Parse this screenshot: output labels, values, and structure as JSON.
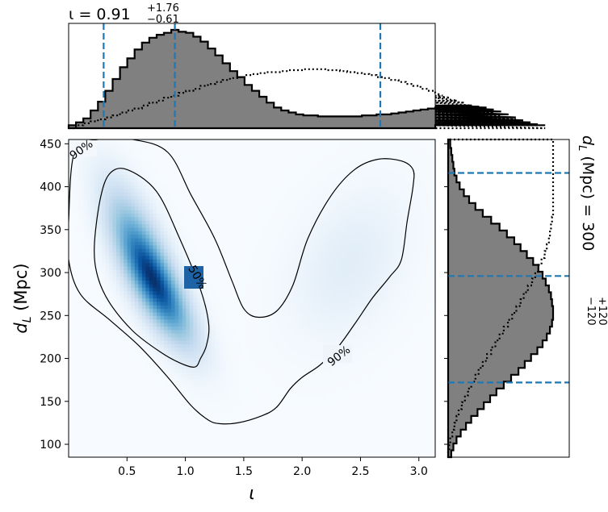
{
  "chart_data": {
    "type": "corner",
    "title": {
      "top_main": "ι = 0.91",
      "top_sup": "+1.76",
      "top_sub": "−0.61",
      "right_main": "d",
      "right_sub_L": "L",
      "right_unit": "(Mpc) = 300",
      "right_sup": "+120",
      "right_sub": "−120"
    },
    "xlabel": "ι",
    "ylabel_main": "d",
    "ylabel_sub": "L",
    "ylabel_unit": "(Mpc)",
    "xlim": [
      0.0,
      3.14
    ],
    "ylim": [
      85,
      455
    ],
    "xticks": [
      0.5,
      1.0,
      1.5,
      2.0,
      2.5,
      3.0
    ],
    "xtick_labels": [
      "0.5",
      "1.0",
      "1.5",
      "2.0",
      "2.5",
      "3.0"
    ],
    "yticks": [
      100,
      150,
      200,
      250,
      300,
      350,
      400,
      450
    ],
    "ytick_labels": [
      "100",
      "150",
      "200",
      "250",
      "300",
      "350",
      "400",
      "450"
    ],
    "contour_labels": [
      "90%",
      "50%",
      "90%"
    ],
    "colors": {
      "hist_fill": "#808080",
      "hist_edge": "#000000",
      "quantile_line": "#1f77b4",
      "density_dark": "#08306b",
      "density_light": "#f7fbff",
      "contour": "#000000"
    },
    "iota_quantiles": [
      0.3,
      0.91,
      2.67
    ],
    "dl_quantiles": [
      172,
      296,
      416
    ],
    "iota_hist": {
      "edges_start": 0.0,
      "bin_width": 0.0628,
      "posterior": [
        0.03,
        0.06,
        0.1,
        0.18,
        0.27,
        0.38,
        0.5,
        0.62,
        0.71,
        0.8,
        0.87,
        0.92,
        0.95,
        0.97,
        1.0,
        0.98,
        0.97,
        0.93,
        0.88,
        0.81,
        0.74,
        0.66,
        0.58,
        0.52,
        0.44,
        0.38,
        0.32,
        0.26,
        0.21,
        0.18,
        0.16,
        0.14,
        0.13,
        0.13,
        0.12,
        0.12,
        0.12,
        0.12,
        0.12,
        0.12,
        0.13,
        0.13,
        0.14,
        0.14,
        0.15,
        0.16,
        0.17,
        0.18,
        0.19,
        0.2,
        0.21,
        0.21,
        0.22,
        0.22,
        0.23,
        0.23,
        0.22,
        0.21,
        0.19,
        0.17,
        0.14,
        0.11,
        0.08,
        0.06,
        0.04,
        0.03
      ],
      "prior": [
        0.0,
        0.03,
        0.05,
        0.07,
        0.09,
        0.11,
        0.13,
        0.16,
        0.18,
        0.2,
        0.23,
        0.26,
        0.28,
        0.31,
        0.33,
        0.36,
        0.38,
        0.4,
        0.43,
        0.45,
        0.47,
        0.49,
        0.51,
        0.52,
        0.54,
        0.55,
        0.56,
        0.57,
        0.57,
        0.58,
        0.59,
        0.59,
        0.6,
        0.6,
        0.6,
        0.59,
        0.59,
        0.58,
        0.57,
        0.56,
        0.55,
        0.54,
        0.52,
        0.51,
        0.49,
        0.47,
        0.45,
        0.43,
        0.4,
        0.38,
        0.36,
        0.33,
        0.31,
        0.28,
        0.26,
        0.23,
        0.2,
        0.18,
        0.16,
        0.13,
        0.11,
        0.09,
        0.07,
        0.05,
        0.03,
        0.0
      ]
    },
    "dl_hist": {
      "edges_start": 85,
      "bin_width": 8.0,
      "posterior": [
        0.03,
        0.05,
        0.08,
        0.12,
        0.17,
        0.22,
        0.28,
        0.34,
        0.4,
        0.46,
        0.53,
        0.6,
        0.67,
        0.73,
        0.79,
        0.85,
        0.9,
        0.94,
        0.97,
        0.99,
        1.0,
        1.0,
        0.99,
        0.98,
        0.96,
        0.93,
        0.9,
        0.86,
        0.81,
        0.75,
        0.69,
        0.63,
        0.56,
        0.49,
        0.41,
        0.33,
        0.26,
        0.2,
        0.15,
        0.11,
        0.08,
        0.06,
        0.05,
        0.04,
        0.03,
        0.02,
        0.02
      ],
      "prior": [
        0.0,
        0.01,
        0.02,
        0.04,
        0.06,
        0.08,
        0.1,
        0.13,
        0.16,
        0.19,
        0.22,
        0.26,
        0.29,
        0.33,
        0.37,
        0.41,
        0.45,
        0.49,
        0.53,
        0.57,
        0.61,
        0.65,
        0.69,
        0.72,
        0.76,
        0.8,
        0.83,
        0.86,
        0.89,
        0.92,
        0.94,
        0.96,
        0.97,
        0.98,
        0.99,
        1.0,
        1.0,
        1.0,
        1.0,
        1.0,
        1.0,
        1.0,
        1.0,
        1.0,
        1.0,
        1.0,
        1.0
      ]
    },
    "density_components": [
      {
        "x": 0.62,
        "y": 325,
        "sx": 0.22,
        "sy": 55,
        "rho": -0.72,
        "w": 1.0
      },
      {
        "x": 0.8,
        "y": 272,
        "sx": 0.22,
        "sy": 45,
        "rho": -0.75,
        "w": 0.95
      },
      {
        "x": 2.4,
        "y": 310,
        "sx": 0.35,
        "sy": 60,
        "rho": 0.35,
        "w": 0.22
      }
    ],
    "contour_50": [
      [
        1.08,
        190
      ],
      [
        1.13,
        200
      ],
      [
        1.18,
        215
      ],
      [
        1.2,
        240
      ],
      [
        1.13,
        280
      ],
      [
        0.95,
        340
      ],
      [
        0.75,
        395
      ],
      [
        0.5,
        420
      ],
      [
        0.35,
        415
      ],
      [
        0.27,
        385
      ],
      [
        0.22,
        330
      ],
      [
        0.25,
        295
      ],
      [
        0.35,
        265
      ],
      [
        0.55,
        232
      ],
      [
        0.78,
        208
      ],
      [
        0.95,
        195
      ]
    ],
    "contour_90": [
      [
        1.3,
        124
      ],
      [
        1.45,
        125
      ],
      [
        1.65,
        133
      ],
      [
        1.78,
        143
      ],
      [
        1.9,
        165
      ],
      [
        2.0,
        178
      ],
      [
        2.15,
        192
      ],
      [
        2.3,
        212
      ],
      [
        2.45,
        240
      ],
      [
        2.6,
        270
      ],
      [
        2.75,
        295
      ],
      [
        2.85,
        315
      ],
      [
        2.9,
        360
      ],
      [
        2.95,
        400
      ],
      [
        2.95,
        420
      ],
      [
        2.85,
        430
      ],
      [
        2.65,
        432
      ],
      [
        2.45,
        420
      ],
      [
        2.25,
        390
      ],
      [
        2.05,
        340
      ],
      [
        1.92,
        285
      ],
      [
        1.78,
        255
      ],
      [
        1.62,
        248
      ],
      [
        1.5,
        258
      ],
      [
        1.4,
        290
      ],
      [
        1.25,
        340
      ],
      [
        1.05,
        390
      ],
      [
        0.85,
        440
      ],
      [
        0.55,
        455
      ],
      [
        0.25,
        455
      ],
      [
        0.05,
        440
      ],
      [
        0.0,
        360
      ],
      [
        0.0,
        315
      ],
      [
        0.1,
        275
      ],
      [
        0.35,
        245
      ],
      [
        0.6,
        215
      ],
      [
        0.85,
        178
      ],
      [
        1.05,
        145
      ],
      [
        1.2,
        128
      ]
    ]
  }
}
